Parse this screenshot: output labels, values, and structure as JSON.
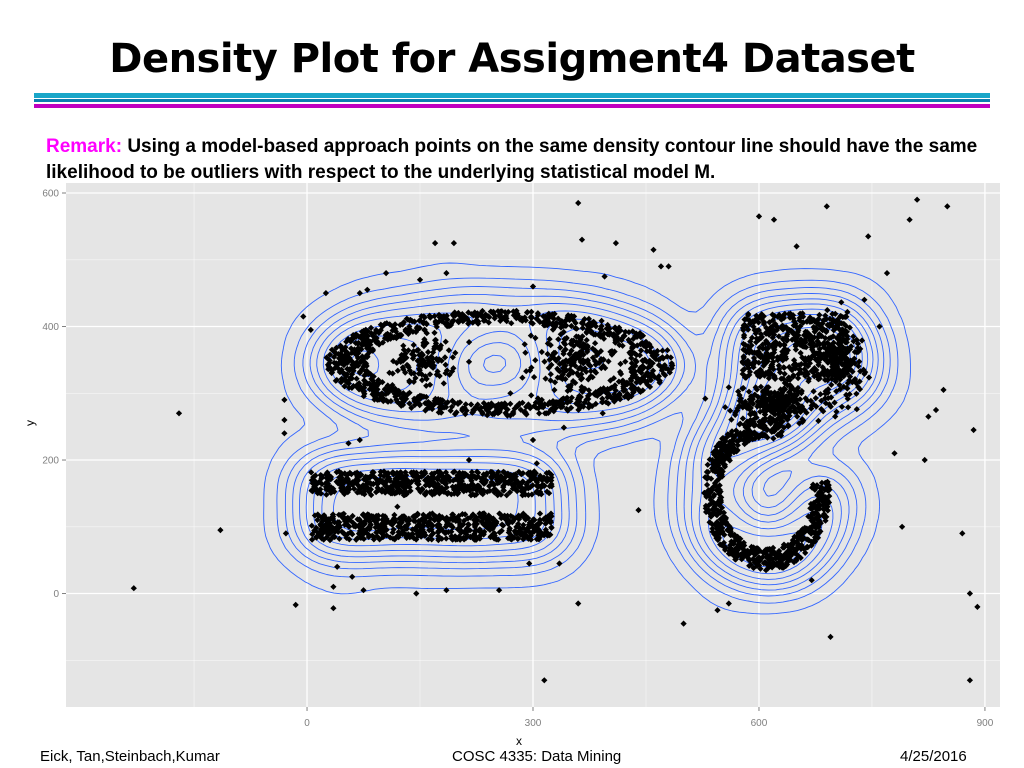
{
  "title": "Density Plot for Assigment4 Dataset",
  "remark": {
    "label": "Remark:",
    "text": "Using a model-based approach points on the same density contour line should have the same likelihood to be outliers with respect to the underlying statistical model M."
  },
  "footer": {
    "left": "Eick, Tan,Steinbach,Kumar",
    "center": "COSC 4335: Data Mining",
    "right": "4/25/2016"
  },
  "colors": {
    "panel": "#e5e5e5",
    "grid": "#ffffff",
    "contour": "#3366ff",
    "point": "#000000",
    "rule_top": "#1aa6c8",
    "rule_mid": "#0c7fb0",
    "rule_bottom": "#c000c0",
    "remark_label": "#ff00ff"
  },
  "chart_data": {
    "type": "scatter",
    "title": "",
    "xlabel": "x",
    "ylabel": "y",
    "xlim": [
      -320,
      920
    ],
    "ylim": [
      -170,
      615
    ],
    "xticks": [
      0,
      300,
      600,
      900
    ],
    "yticks": [
      0,
      200,
      400,
      600
    ],
    "grid": true,
    "density_contours": true,
    "series": [
      {
        "values": [
          [
            -230,
            8
          ],
          [
            -170,
            270
          ],
          [
            -115,
            95
          ],
          [
            -30,
            260
          ],
          [
            -30,
            240
          ],
          [
            -30,
            290
          ],
          [
            -28,
            90
          ],
          [
            -15,
            -17
          ],
          [
            -5,
            415
          ],
          [
            5,
            395
          ],
          [
            25,
            450
          ],
          [
            35,
            10
          ],
          [
            35,
            -22
          ],
          [
            40,
            40
          ],
          [
            55,
            225
          ],
          [
            70,
            230
          ],
          [
            60,
            25
          ],
          [
            70,
            450
          ],
          [
            75,
            5
          ],
          [
            80,
            455
          ],
          [
            105,
            480
          ],
          [
            120,
            130
          ],
          [
            145,
            0
          ],
          [
            150,
            470
          ],
          [
            170,
            525
          ],
          [
            185,
            480
          ],
          [
            185,
            5
          ],
          [
            195,
            525
          ],
          [
            215,
            200
          ],
          [
            235,
            120
          ],
          [
            255,
            5
          ],
          [
            270,
            300
          ],
          [
            295,
            45
          ],
          [
            300,
            230
          ],
          [
            305,
            195
          ],
          [
            315,
            -130
          ],
          [
            335,
            45
          ],
          [
            360,
            585
          ],
          [
            360,
            -15
          ],
          [
            365,
            530
          ],
          [
            395,
            475
          ],
          [
            410,
            525
          ],
          [
            440,
            125
          ],
          [
            460,
            515
          ],
          [
            470,
            490
          ],
          [
            500,
            -45
          ],
          [
            545,
            -25
          ],
          [
            560,
            -15
          ],
          [
            600,
            565
          ],
          [
            620,
            560
          ],
          [
            650,
            520
          ],
          [
            690,
            580
          ],
          [
            695,
            -65
          ],
          [
            710,
            370
          ],
          [
            740,
            440
          ],
          [
            745,
            535
          ],
          [
            760,
            400
          ],
          [
            770,
            480
          ],
          [
            780,
            210
          ],
          [
            790,
            100
          ],
          [
            800,
            560
          ],
          [
            810,
            590
          ],
          [
            820,
            200
          ],
          [
            825,
            265
          ],
          [
            835,
            275
          ],
          [
            845,
            305
          ],
          [
            850,
            580
          ],
          [
            870,
            90
          ],
          [
            880,
            0
          ],
          [
            885,
            245
          ],
          [
            890,
            -20
          ],
          [
            880,
            -130
          ],
          [
            670,
            20
          ],
          [
            480,
            490
          ],
          [
            300,
            460
          ]
        ]
      }
    ],
    "clusters": [
      {
        "shape": "ring",
        "cx": 255,
        "cy": 345,
        "rx": 220,
        "ry": 75,
        "n": 1000
      },
      {
        "shape": "blob",
        "cx": 155,
        "cy": 350,
        "rx": 40,
        "ry": 40,
        "n": 120
      },
      {
        "shape": "blob",
        "cx": 355,
        "cy": 345,
        "rx": 55,
        "ry": 50,
        "n": 200
      },
      {
        "shape": "bar",
        "cx": 165,
        "cy": 165,
        "rx": 160,
        "ry": 18,
        "n": 600
      },
      {
        "shape": "bar",
        "cx": 165,
        "cy": 100,
        "rx": 160,
        "ry": 20,
        "n": 600
      },
      {
        "shape": "rect",
        "cx": 648,
        "cy": 370,
        "rx": 70,
        "ry": 50,
        "n": 500
      },
      {
        "shape": "blob",
        "cx": 708,
        "cy": 350,
        "rx": 30,
        "ry": 60,
        "n": 160
      },
      {
        "shape": "arc",
        "cx": 610,
        "cy": 150,
        "rx": 80,
        "ry": 110,
        "n": 700
      },
      {
        "shape": "band",
        "cx": 625,
        "cy": 285,
        "rx": 60,
        "ry": 30,
        "n": 260
      }
    ]
  }
}
